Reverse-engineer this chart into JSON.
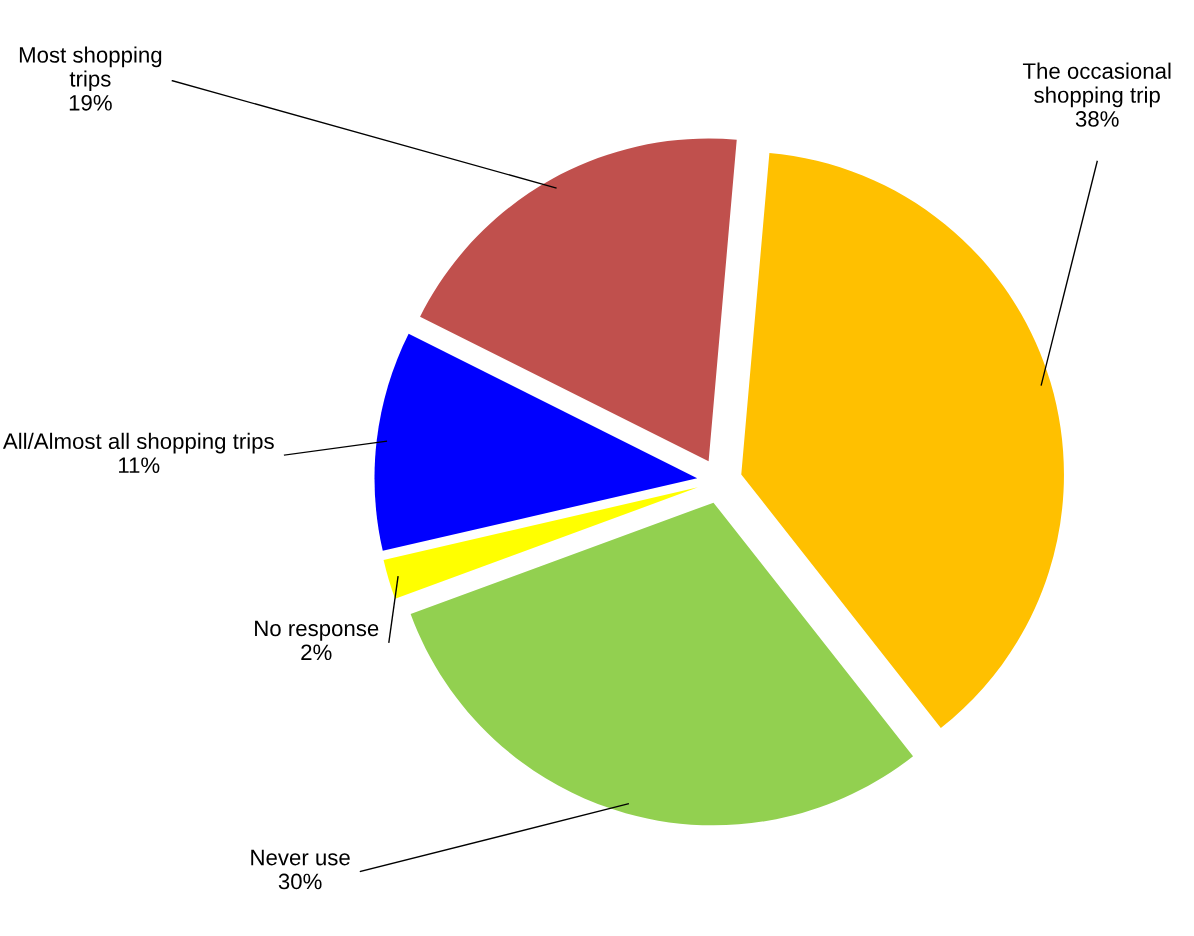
{
  "chart_data": {
    "type": "pie",
    "categories": [
      "The occasional shopping trip",
      "Never use",
      "No response",
      "All/Almost all shopping trips",
      "Most shopping trips"
    ],
    "values": [
      38,
      30,
      2,
      11,
      19
    ],
    "value_labels": [
      "38%",
      "30%",
      "2%",
      "11%",
      "19%"
    ],
    "colors": [
      "#ffc000",
      "#92d050",
      "#ffff00",
      "#0000ff",
      "#c0504d"
    ],
    "legend": false
  }
}
